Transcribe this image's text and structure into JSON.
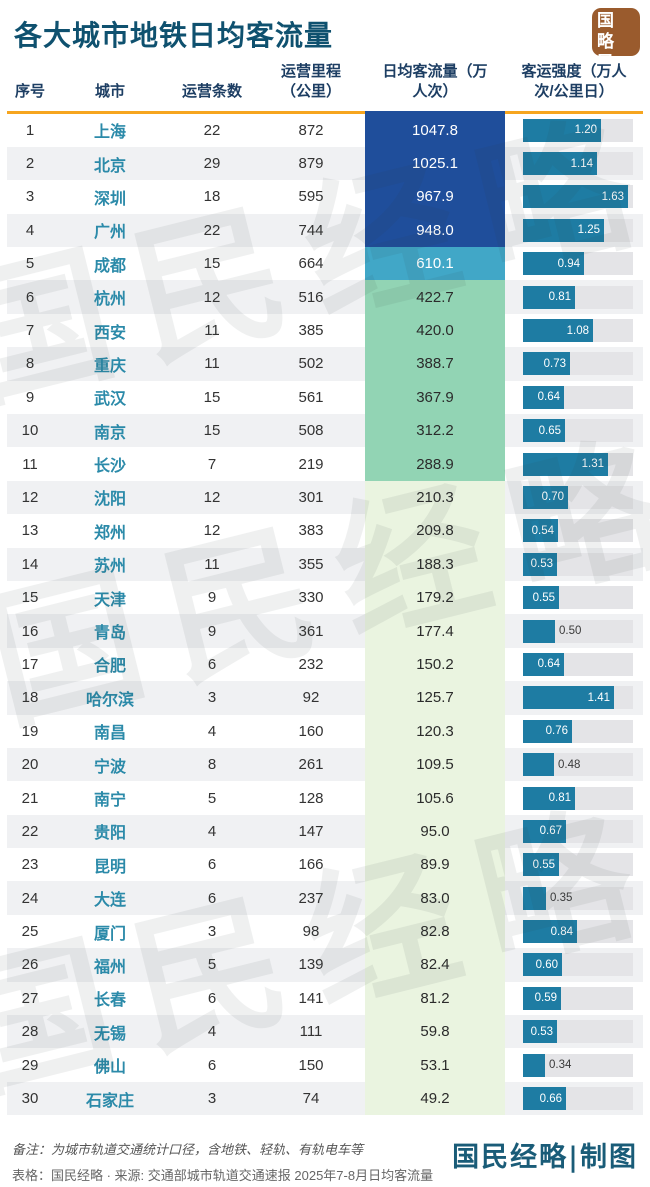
{
  "title": "各大城市地铁日均客流量",
  "logo": {
    "line1": "经国",
    "line2": "略民"
  },
  "watermark_text": "国民经略",
  "table": {
    "headers": [
      "序号",
      "城市",
      "运营条数",
      "运营里程\n（公里）",
      "日均客流量（万\n人次）",
      "客运强度（万人\n次/公里日）"
    ],
    "intensity_scale_max": 1.7,
    "rows": [
      {
        "rank": "1",
        "city": "上海",
        "lines": "22",
        "mileage": "872",
        "flow": "1047.8",
        "intensity": "1.20"
      },
      {
        "rank": "2",
        "city": "北京",
        "lines": "29",
        "mileage": "879",
        "flow": "1025.1",
        "intensity": "1.14"
      },
      {
        "rank": "3",
        "city": "深圳",
        "lines": "18",
        "mileage": "595",
        "flow": "967.9",
        "intensity": "1.63"
      },
      {
        "rank": "4",
        "city": "广州",
        "lines": "22",
        "mileage": "744",
        "flow": "948.0",
        "intensity": "1.25"
      },
      {
        "rank": "5",
        "city": "成都",
        "lines": "15",
        "mileage": "664",
        "flow": "610.1",
        "intensity": "0.94"
      },
      {
        "rank": "6",
        "city": "杭州",
        "lines": "12",
        "mileage": "516",
        "flow": "422.7",
        "intensity": "0.81"
      },
      {
        "rank": "7",
        "city": "西安",
        "lines": "11",
        "mileage": "385",
        "flow": "420.0",
        "intensity": "1.08"
      },
      {
        "rank": "8",
        "city": "重庆",
        "lines": "11",
        "mileage": "502",
        "flow": "388.7",
        "intensity": "0.73"
      },
      {
        "rank": "9",
        "city": "武汉",
        "lines": "15",
        "mileage": "561",
        "flow": "367.9",
        "intensity": "0.64"
      },
      {
        "rank": "10",
        "city": "南京",
        "lines": "15",
        "mileage": "508",
        "flow": "312.2",
        "intensity": "0.65"
      },
      {
        "rank": "11",
        "city": "长沙",
        "lines": "7",
        "mileage": "219",
        "flow": "288.9",
        "intensity": "1.31"
      },
      {
        "rank": "12",
        "city": "沈阳",
        "lines": "12",
        "mileage": "301",
        "flow": "210.3",
        "intensity": "0.70"
      },
      {
        "rank": "13",
        "city": "郑州",
        "lines": "12",
        "mileage": "383",
        "flow": "209.8",
        "intensity": "0.54"
      },
      {
        "rank": "14",
        "city": "苏州",
        "lines": "11",
        "mileage": "355",
        "flow": "188.3",
        "intensity": "0.53"
      },
      {
        "rank": "15",
        "city": "天津",
        "lines": "9",
        "mileage": "330",
        "flow": "179.2",
        "intensity": "0.55"
      },
      {
        "rank": "16",
        "city": "青岛",
        "lines": "9",
        "mileage": "361",
        "flow": "177.4",
        "intensity": "0.50"
      },
      {
        "rank": "17",
        "city": "合肥",
        "lines": "6",
        "mileage": "232",
        "flow": "150.2",
        "intensity": "0.64"
      },
      {
        "rank": "18",
        "city": "哈尔滨",
        "lines": "3",
        "mileage": "92",
        "flow": "125.7",
        "intensity": "1.41"
      },
      {
        "rank": "19",
        "city": "南昌",
        "lines": "4",
        "mileage": "160",
        "flow": "120.3",
        "intensity": "0.76"
      },
      {
        "rank": "20",
        "city": "宁波",
        "lines": "8",
        "mileage": "261",
        "flow": "109.5",
        "intensity": "0.48"
      },
      {
        "rank": "21",
        "city": "南宁",
        "lines": "5",
        "mileage": "128",
        "flow": "105.6",
        "intensity": "0.81"
      },
      {
        "rank": "22",
        "city": "贵阳",
        "lines": "4",
        "mileage": "147",
        "flow": "95.0",
        "intensity": "0.67"
      },
      {
        "rank": "23",
        "city": "昆明",
        "lines": "6",
        "mileage": "166",
        "flow": "89.9",
        "intensity": "0.55"
      },
      {
        "rank": "24",
        "city": "大连",
        "lines": "6",
        "mileage": "237",
        "flow": "83.0",
        "intensity": "0.35"
      },
      {
        "rank": "25",
        "city": "厦门",
        "lines": "3",
        "mileage": "98",
        "flow": "82.8",
        "intensity": "0.84"
      },
      {
        "rank": "26",
        "city": "福州",
        "lines": "5",
        "mileage": "139",
        "flow": "82.4",
        "intensity": "0.60"
      },
      {
        "rank": "27",
        "city": "长春",
        "lines": "6",
        "mileage": "141",
        "flow": "81.2",
        "intensity": "0.59"
      },
      {
        "rank": "28",
        "city": "无锡",
        "lines": "4",
        "mileage": "111",
        "flow": "59.8",
        "intensity": "0.53"
      },
      {
        "rank": "29",
        "city": "佛山",
        "lines": "6",
        "mileage": "150",
        "flow": "53.1",
        "intensity": "0.34"
      },
      {
        "rank": "30",
        "city": "石家庄",
        "lines": "3",
        "mileage": "74",
        "flow": "49.2",
        "intensity": "0.66"
      }
    ]
  },
  "footer": {
    "note1": "备注：为城市轨道交通统计口径，含地铁、轻轨、有轨电车等",
    "note2": "表格：国民经略 · 来源: 交通部城市轨道交通速报 2025年7-8月日均客流量",
    "signature": "国民经略|制图"
  },
  "colors": {
    "title": "#0f516f",
    "header_text": "#1d3e63",
    "accent_orange": "#f6a51f",
    "city_text": "#2b8aa9",
    "logo_bg": "#9a5b2d",
    "row_alt_bg": "#f0f1f3",
    "flow_tier1": "#1f4e9b",
    "flow_tier2": "#41a7c7",
    "flow_tier3": "#92d4b4",
    "flow_tier4": "#eaf4e0",
    "bar": "#1e7ca3",
    "bar_track": "#e4e4e7",
    "signature": "#1a5c78"
  },
  "chart_data": {
    "type": "table",
    "title": "各大城市地铁日均客流量",
    "columns": [
      "序号",
      "城市",
      "运营条数",
      "运营里程（公里）",
      "日均客流量（万人次）",
      "客运强度（万人次/公里日）"
    ],
    "categories": [
      "上海",
      "北京",
      "深圳",
      "广州",
      "成都",
      "杭州",
      "西安",
      "重庆",
      "武汉",
      "南京",
      "长沙",
      "沈阳",
      "郑州",
      "苏州",
      "天津",
      "青岛",
      "合肥",
      "哈尔滨",
      "南昌",
      "宁波",
      "南宁",
      "贵阳",
      "昆明",
      "大连",
      "厦门",
      "福州",
      "长春",
      "无锡",
      "佛山",
      "石家庄"
    ],
    "series": [
      {
        "name": "运营条数",
        "values": [
          22,
          29,
          18,
          22,
          15,
          12,
          11,
          11,
          15,
          15,
          7,
          12,
          12,
          11,
          9,
          9,
          6,
          3,
          4,
          8,
          5,
          4,
          6,
          6,
          3,
          5,
          6,
          4,
          6,
          3
        ]
      },
      {
        "name": "运营里程（公里）",
        "values": [
          872,
          879,
          595,
          744,
          664,
          516,
          385,
          502,
          561,
          508,
          219,
          301,
          383,
          355,
          330,
          361,
          232,
          92,
          160,
          261,
          128,
          147,
          166,
          237,
          98,
          139,
          141,
          111,
          150,
          74
        ]
      },
      {
        "name": "日均客流量（万人次）",
        "values": [
          1047.8,
          1025.1,
          967.9,
          948.0,
          610.1,
          422.7,
          420.0,
          388.7,
          367.9,
          312.2,
          288.9,
          210.3,
          209.8,
          188.3,
          179.2,
          177.4,
          150.2,
          125.7,
          120.3,
          109.5,
          105.6,
          95.0,
          89.9,
          83.0,
          82.8,
          82.4,
          81.2,
          59.8,
          53.1,
          49.2
        ]
      },
      {
        "name": "客运强度（万人次/公里日）",
        "values": [
          1.2,
          1.14,
          1.63,
          1.25,
          0.94,
          0.81,
          1.08,
          0.73,
          0.64,
          0.65,
          1.31,
          0.7,
          0.54,
          0.53,
          0.55,
          0.5,
          0.64,
          1.41,
          0.76,
          0.48,
          0.81,
          0.67,
          0.55,
          0.35,
          0.84,
          0.6,
          0.59,
          0.53,
          0.34,
          0.66
        ]
      }
    ],
    "intensity_bar_axis_max": 1.7,
    "flow_color_tiers": [
      {
        "min": 900,
        "color": "#1f4e9b"
      },
      {
        "min": 500,
        "color": "#41a7c7"
      },
      {
        "min": 250,
        "color": "#92d4b4"
      },
      {
        "min": 0,
        "color": "#eaf4e0"
      }
    ],
    "legend_position": "none",
    "grid": false
  }
}
